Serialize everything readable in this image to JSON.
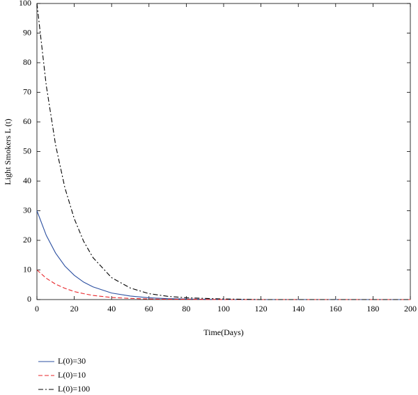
{
  "chart_data": {
    "type": "line",
    "x_label": "Time(Days)",
    "y_label": "Light Smokers L (t)",
    "x": [
      0,
      5,
      10,
      15,
      20,
      25,
      30,
      40,
      50,
      60,
      70,
      80,
      100,
      120,
      140,
      160,
      180,
      200
    ],
    "series": [
      {
        "name": "L(0)=30",
        "color": "#2b4fa0",
        "dash": "solid",
        "values": [
          30,
          21.7,
          15.7,
          11.3,
          8.2,
          5.9,
          4.3,
          2.2,
          1.2,
          0.6,
          0.3,
          0.2,
          0,
          0,
          0,
          0,
          0,
          0
        ]
      },
      {
        "name": "L(0)=10",
        "color": "#e8262a",
        "dash": "dashed",
        "values": [
          10,
          7.2,
          5.2,
          3.8,
          2.7,
          2.0,
          1.4,
          0.7,
          0.4,
          0.2,
          0.1,
          0.1,
          0,
          0,
          0,
          0,
          0,
          0
        ]
      },
      {
        "name": "L(0)=100",
        "color": "#000000",
        "dash": "dashdot",
        "values": [
          100,
          72.3,
          52.2,
          37.7,
          27.3,
          19.7,
          14.2,
          7.4,
          3.9,
          2.0,
          1.1,
          0.6,
          0.2,
          0,
          0,
          0,
          0,
          0
        ]
      }
    ],
    "xlim": [
      0,
      200
    ],
    "xticks": [
      0,
      20,
      40,
      60,
      80,
      100,
      120,
      140,
      160,
      180,
      200
    ],
    "ylim": [
      0,
      100
    ],
    "yticks": [
      0,
      10,
      20,
      30,
      40,
      50,
      60,
      70,
      80,
      90,
      100
    ],
    "legend": "below-left"
  }
}
